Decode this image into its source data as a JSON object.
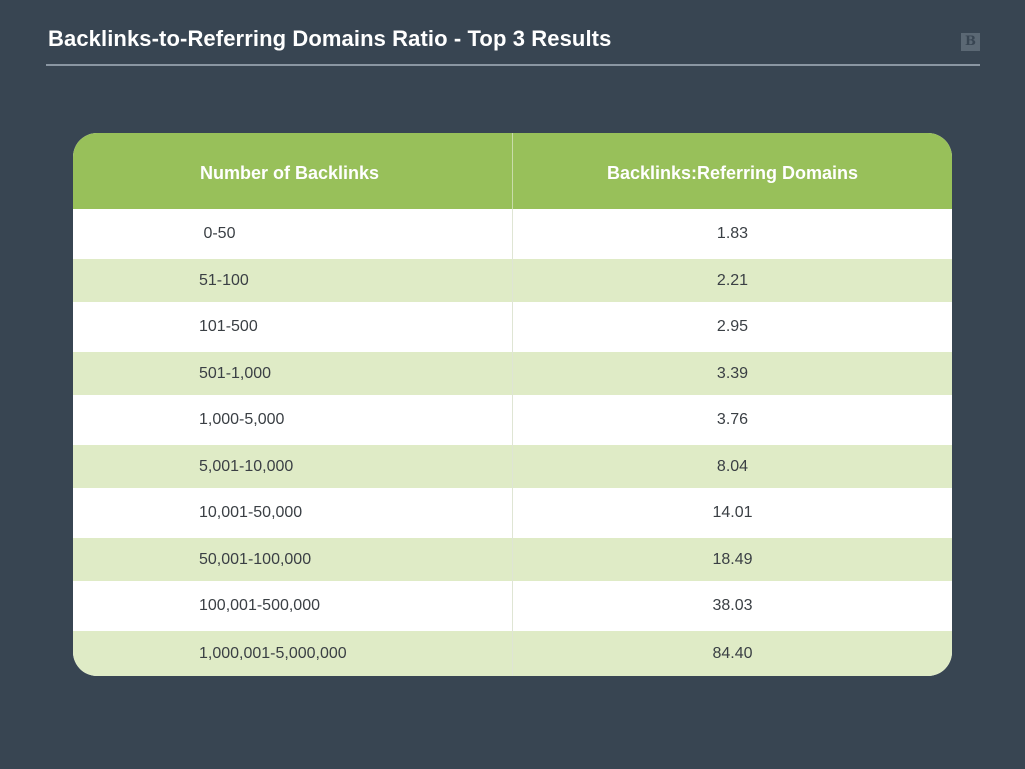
{
  "title": "Backlinks-to-Referring Domains Ratio - Top 3 Results",
  "logo": "B",
  "colors": {
    "background": "#384552",
    "header_green": "#98c05a",
    "alt_row": "#dfebc6",
    "row_white": "#ffffff"
  },
  "chart_data": {
    "type": "table",
    "title": "Backlinks-to-Referring Domains Ratio - Top 3 Results",
    "columns": [
      "Number of Backlinks",
      "Backlinks:Referring Domains"
    ],
    "rows": [
      [
        " 0-50",
        "1.83"
      ],
      [
        "51-100",
        "2.21"
      ],
      [
        "101-500",
        "2.95"
      ],
      [
        "501-1,000",
        "3.39"
      ],
      [
        "1,000-5,000",
        "3.76"
      ],
      [
        "5,001-10,000",
        "8.04"
      ],
      [
        "10,001-50,000",
        "14.01"
      ],
      [
        "50,001-100,000",
        "18.49"
      ],
      [
        "100,001-500,000",
        "38.03"
      ],
      [
        "1,000,001-5,000,000",
        "84.40"
      ]
    ]
  }
}
